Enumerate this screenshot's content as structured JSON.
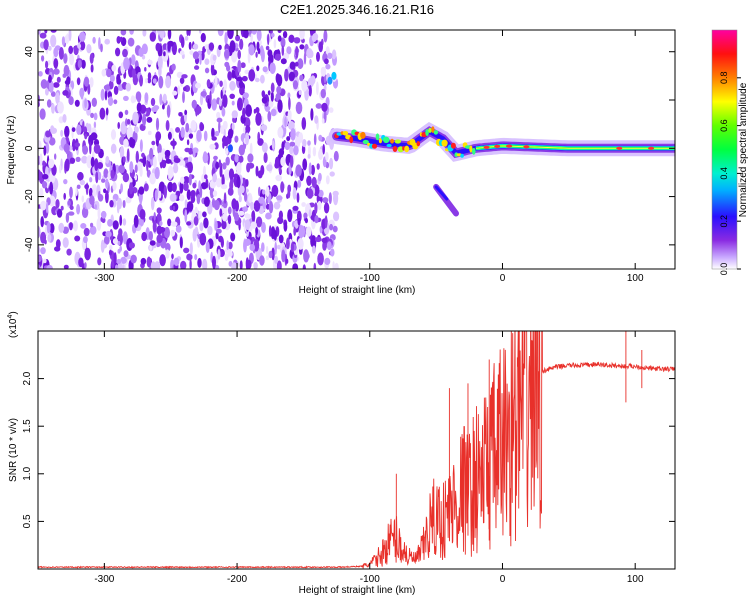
{
  "title": "C2E1.2025.346.16.21.R16",
  "chart_data": [
    {
      "type": "heatmap",
      "xlabel": "Height of straight line (km)",
      "ylabel": "Frequency (Hz)",
      "xlim": [
        -350,
        130
      ],
      "ylim": [
        -50,
        49
      ],
      "xticks": [
        -300,
        -200,
        -100,
        0,
        100
      ],
      "xtick_labels": [
        "-300",
        "-200",
        "-100",
        "0",
        "100"
      ],
      "yticks": [
        -40,
        -20,
        0,
        20,
        40
      ],
      "ytick_labels": [
        "-40",
        "-20",
        "0",
        "20",
        "40"
      ],
      "colorbar": {
        "label": "Normalized spectral amplitude",
        "range": [
          0,
          1
        ],
        "ticks": [
          0.0,
          0.2,
          0.4,
          0.6,
          0.8
        ],
        "tick_labels": [
          "0.0",
          "0.2",
          "0.4",
          "0.6",
          "0.8"
        ]
      },
      "features": {
        "noise_region_x": [
          -350,
          -125
        ],
        "signal_line": [
          {
            "x": -125,
            "y": 5
          },
          {
            "x": -110,
            "y": 4
          },
          {
            "x": -90,
            "y": 2
          },
          {
            "x": -70,
            "y": 1
          },
          {
            "x": -55,
            "y": 7
          },
          {
            "x": -45,
            "y": 4
          },
          {
            "x": -35,
            "y": -2
          },
          {
            "x": -20,
            "y": 0
          },
          {
            "x": 0,
            "y": 1
          },
          {
            "x": 50,
            "y": 0
          },
          {
            "x": 130,
            "y": 0
          }
        ],
        "secondary_track": [
          {
            "x": -50,
            "y": -16
          },
          {
            "x": -35,
            "y": -27
          }
        ]
      },
      "grid": false
    },
    {
      "type": "line",
      "xlabel": "Height of straight line (km)",
      "ylabel": "SNR (10 * v/v)",
      "yscale_label": "(x10",
      "yscale_exp": "4",
      "yscale_close": ")",
      "xlim": [
        -350,
        130
      ],
      "ylim": [
        0,
        2.5
      ],
      "xticks": [
        -300,
        -200,
        -100,
        0,
        100
      ],
      "xtick_labels": [
        "-300",
        "-200",
        "-100",
        "0",
        "100"
      ],
      "yticks": [
        0.5,
        1.0,
        1.5,
        2.0
      ],
      "ytick_labels": [
        "0.5",
        "1.0",
        "1.5",
        "2.0"
      ],
      "color": "#e8302a",
      "series": [
        {
          "name": "SNR",
          "x": [
            -350,
            -300,
            -250,
            -200,
            -150,
            -120,
            -105,
            -100,
            -95,
            -90,
            -85,
            -80,
            -75,
            -70,
            -65,
            -60,
            -55,
            -50,
            -45,
            -40,
            -35,
            -30,
            -25,
            -20,
            -15,
            -10,
            -5,
            0,
            5,
            10,
            15,
            20,
            25,
            30,
            40,
            50,
            60,
            70,
            80,
            90,
            100,
            110,
            120,
            130
          ],
          "y": [
            0.02,
            0.02,
            0.02,
            0.02,
            0.02,
            0.02,
            0.03,
            0.05,
            0.1,
            0.18,
            0.3,
            0.32,
            0.2,
            0.12,
            0.1,
            0.22,
            0.45,
            0.55,
            0.5,
            0.62,
            0.7,
            0.85,
            0.8,
            0.95,
            1.0,
            1.1,
            1.2,
            1.3,
            1.45,
            1.55,
            1.7,
            1.85,
            2.0,
            2.08,
            2.12,
            2.14,
            2.14,
            2.15,
            2.14,
            2.13,
            2.13,
            2.11,
            2.1,
            2.1
          ]
        }
      ],
      "grid": false
    }
  ]
}
